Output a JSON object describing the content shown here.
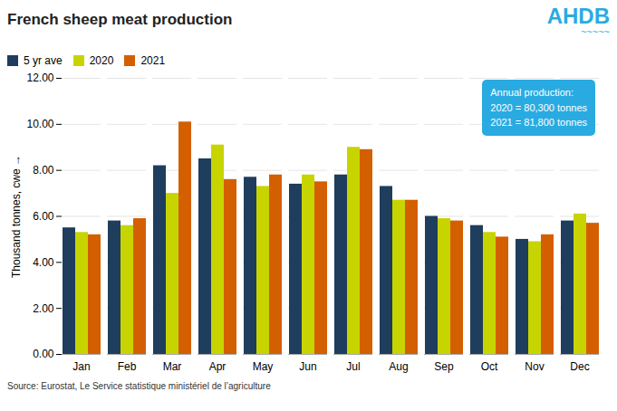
{
  "chart_data": {
    "type": "bar",
    "title": "French sheep meat production",
    "y_label": "Thousand tonnes, cwe",
    "categories": [
      "Jan",
      "Feb",
      "Mar",
      "Apr",
      "May",
      "Jun",
      "Jul",
      "Aug",
      "Sep",
      "Oct",
      "Nov",
      "Dec"
    ],
    "series": [
      {
        "name": "5 yr ave",
        "color": "#1f3d5c",
        "values": [
          5.5,
          5.8,
          8.2,
          8.5,
          7.7,
          7.4,
          7.8,
          7.3,
          6.0,
          5.6,
          5.0,
          5.8
        ]
      },
      {
        "name": "2020",
        "color": "#c8d400",
        "values": [
          5.3,
          5.6,
          7.0,
          9.1,
          7.3,
          7.8,
          9.0,
          6.7,
          5.9,
          5.3,
          4.9,
          6.1
        ]
      },
      {
        "name": "2021",
        "color": "#d45f00",
        "values": [
          5.2,
          5.9,
          10.1,
          7.6,
          7.8,
          7.5,
          8.9,
          6.7,
          5.8,
          5.1,
          5.2,
          5.7
        ]
      }
    ],
    "ylim": [
      0,
      12.0
    ],
    "yticks": [
      {
        "value": 0.0,
        "label": "0.00"
      },
      {
        "value": 2.0,
        "label": "2.00"
      },
      {
        "value": 4.0,
        "label": "4.00"
      },
      {
        "value": 6.0,
        "label": "6.00"
      },
      {
        "value": 8.0,
        "label": "8.00"
      },
      {
        "value": 10.0,
        "label": "10.00"
      },
      {
        "value": 12.0,
        "label": "12.00"
      }
    ],
    "grid": true,
    "legend": "top",
    "annotations": [
      "Annual production:\n2020 = 80,300 tonnes\n2021 = 81,800 tonnes",
      "AHDB",
      "~~~~~",
      "Source: Eurostat, Le Service statistique ministériel de l’agriculture"
    ]
  }
}
